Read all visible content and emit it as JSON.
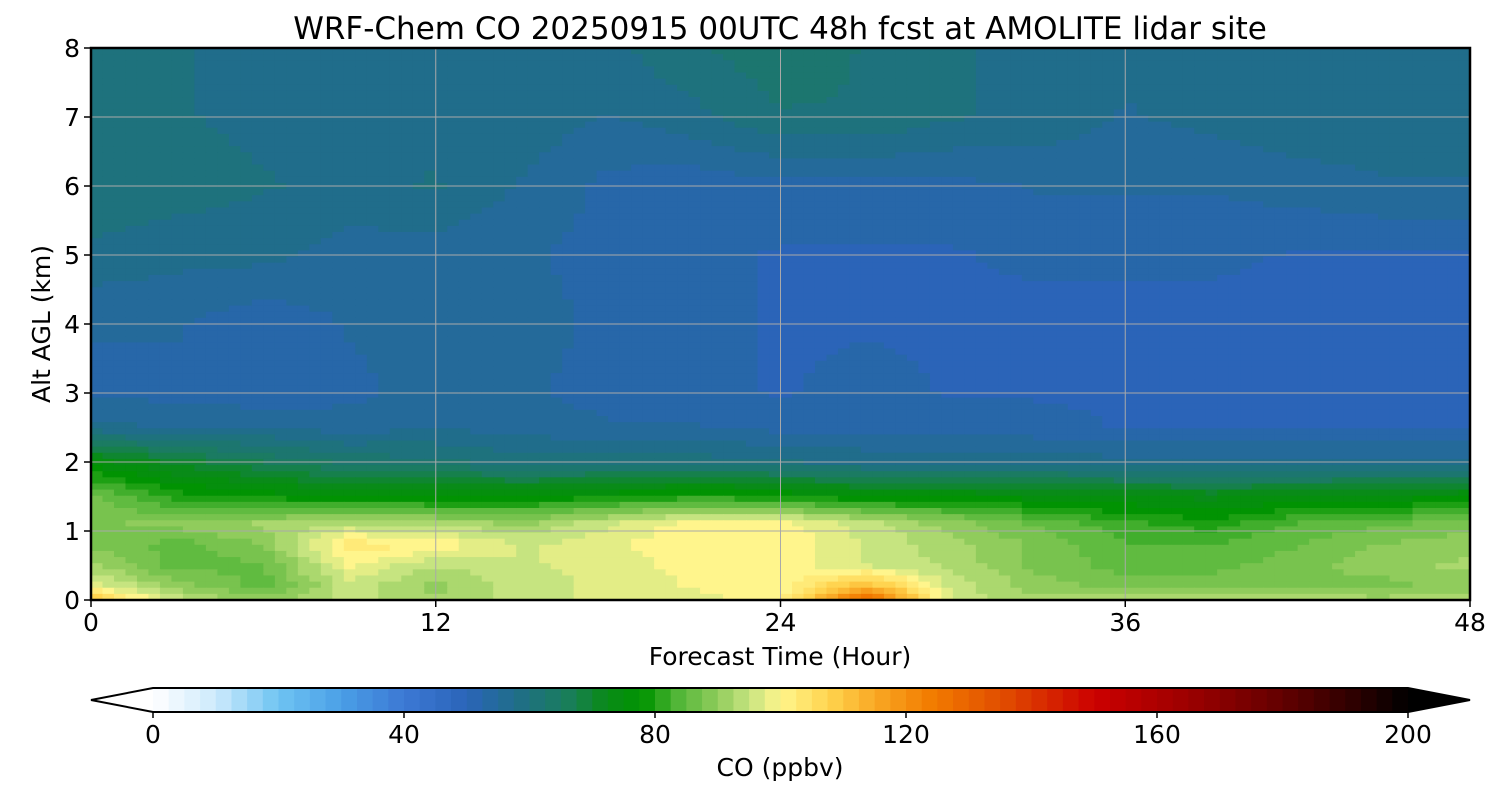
{
  "chart_data": {
    "type": "heatmap",
    "subtype": "filled-contour time-height cross-section",
    "title": "WRF-Chem CO  20250915 00UTC 48h fcst at AMOLITE lidar site",
    "xlabel": "Forecast Time (Hour)",
    "ylabel": "Alt AGL (km)",
    "xlim": [
      0,
      48
    ],
    "ylim": [
      0,
      8
    ],
    "xticks": [
      0,
      12,
      24,
      36,
      48
    ],
    "yticks": [
      0,
      1,
      2,
      3,
      4,
      5,
      6,
      7,
      8
    ],
    "grid": true,
    "x_hours": [
      0,
      3,
      6,
      9,
      12,
      15,
      18,
      21,
      24,
      27,
      30,
      33,
      36,
      39,
      42,
      45,
      48
    ],
    "y_km": [
      0,
      0.2,
      0.5,
      0.8,
      1.1,
      1.5,
      2,
      2.5,
      3,
      4,
      5,
      6,
      7,
      8
    ],
    "values_ppbv": [
      [
        110,
        95,
        90,
        95,
        92,
        95,
        97,
        98,
        100,
        130,
        95,
        92,
        93,
        94,
        93,
        92,
        93
      ],
      [
        98,
        90,
        85,
        95,
        90,
        95,
        97,
        99,
        100,
        112,
        95,
        90,
        88,
        88,
        88,
        88,
        90
      ],
      [
        92,
        85,
        86,
        99,
        94,
        96,
        97,
        100,
        100,
        96,
        93,
        88,
        85,
        85,
        88,
        90,
        92
      ],
      [
        88,
        85,
        89,
        103,
        101,
        96,
        98,
        101,
        101,
        96,
        92,
        88,
        84,
        84,
        86,
        89,
        90
      ],
      [
        88,
        90,
        92,
        94,
        93,
        91,
        96,
        100,
        100,
        95,
        90,
        86,
        82,
        80,
        84,
        86,
        88
      ],
      [
        87,
        80,
        78,
        76,
        76,
        76,
        78,
        80,
        79,
        76,
        76,
        75,
        74,
        73,
        74,
        75,
        76
      ],
      [
        75,
        70,
        66,
        63,
        62,
        60,
        60,
        60,
        59,
        58,
        58,
        58,
        57,
        57,
        57,
        57,
        57
      ],
      [
        57,
        56,
        56,
        55,
        56,
        55,
        54,
        54,
        53,
        53,
        53,
        52,
        51,
        51,
        51,
        51,
        51
      ],
      [
        53,
        53,
        52,
        53,
        55,
        54,
        53,
        52,
        51,
        52,
        51,
        51,
        51,
        50,
        50,
        50,
        50
      ],
      [
        54,
        54,
        52,
        54,
        55,
        55,
        53,
        52,
        51,
        51,
        51,
        50,
        50,
        50,
        50,
        50,
        50
      ],
      [
        58,
        57,
        57,
        55,
        55,
        54,
        53,
        52,
        51,
        51,
        51,
        52,
        52,
        52,
        51,
        51,
        51
      ],
      [
        61,
        60,
        59,
        58,
        59,
        56,
        53,
        52,
        53,
        53,
        53,
        54,
        54,
        54,
        55,
        56,
        56
      ],
      [
        61,
        59,
        58,
        58,
        58,
        58,
        56,
        58,
        61,
        61,
        59,
        58,
        56,
        57,
        58,
        58,
        58
      ],
      [
        61,
        59,
        58,
        58,
        58,
        58,
        58,
        61,
        63,
        61,
        59,
        58,
        57,
        58,
        58,
        57,
        58
      ]
    ],
    "colorbar": {
      "label": "CO  (ppbv)",
      "min": 0,
      "max": 200,
      "ticks": [
        0,
        40,
        80,
        120,
        160,
        200
      ],
      "extend": "both",
      "colormap_stops": [
        {
          "v": 0,
          "c": "#ffffff"
        },
        {
          "v": 10,
          "c": "#cdeafc"
        },
        {
          "v": 20,
          "c": "#6ec4f2"
        },
        {
          "v": 30,
          "c": "#4a9fe6"
        },
        {
          "v": 40,
          "c": "#3c78d4"
        },
        {
          "v": 50,
          "c": "#2b64b8"
        },
        {
          "v": 58,
          "c": "#1f6e88"
        },
        {
          "v": 66,
          "c": "#1a7d5c"
        },
        {
          "v": 72,
          "c": "#0a8a1a"
        },
        {
          "v": 78,
          "c": "#009400"
        },
        {
          "v": 84,
          "c": "#56b73a"
        },
        {
          "v": 90,
          "c": "#90cc5c"
        },
        {
          "v": 95,
          "c": "#c6e480"
        },
        {
          "v": 100,
          "c": "#fff58c"
        },
        {
          "v": 108,
          "c": "#ffd24c"
        },
        {
          "v": 116,
          "c": "#f8a320"
        },
        {
          "v": 124,
          "c": "#f27c00"
        },
        {
          "v": 136,
          "c": "#e04a00"
        },
        {
          "v": 150,
          "c": "#cc0000"
        },
        {
          "v": 165,
          "c": "#9c0000"
        },
        {
          "v": 180,
          "c": "#620000"
        },
        {
          "v": 192,
          "c": "#2a0000"
        },
        {
          "v": 200,
          "c": "#000000"
        }
      ]
    }
  }
}
